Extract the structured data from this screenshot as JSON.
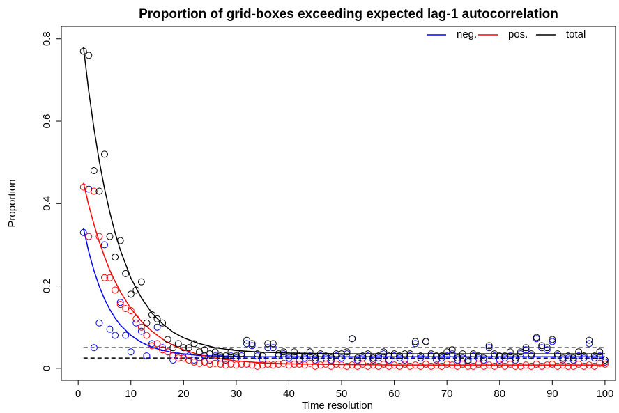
{
  "chart_data": {
    "type": "scatter",
    "title": "Proportion of grid-boxes exceeding expected lag-1 autocorrelation",
    "xlabel": "Time resolution",
    "ylabel": "Proportion",
    "xlim": [
      -3.2,
      102
    ],
    "ylim": [
      -0.029,
      0.83
    ],
    "xticks": [
      0,
      10,
      20,
      30,
      40,
      50,
      60,
      70,
      80,
      90,
      100
    ],
    "yticks": [
      0,
      0.2,
      0.4,
      0.6,
      0.8
    ],
    "legend": "top-right",
    "hlines": [
      0.025,
      0.05
    ],
    "x": [
      1,
      2,
      3,
      4,
      5,
      6,
      7,
      8,
      9,
      10,
      11,
      12,
      13,
      14,
      15,
      16,
      17,
      18,
      19,
      20,
      21,
      22,
      23,
      24,
      25,
      26,
      27,
      28,
      29,
      30,
      31,
      32,
      33,
      34,
      35,
      36,
      37,
      38,
      39,
      40,
      41,
      42,
      43,
      44,
      45,
      46,
      47,
      48,
      49,
      50,
      51,
      52,
      53,
      54,
      55,
      56,
      57,
      58,
      59,
      60,
      61,
      62,
      63,
      64,
      65,
      66,
      67,
      68,
      69,
      70,
      71,
      72,
      73,
      74,
      75,
      76,
      77,
      78,
      79,
      80,
      81,
      82,
      83,
      84,
      85,
      86,
      87,
      88,
      89,
      90,
      91,
      92,
      93,
      94,
      95,
      96,
      97,
      98,
      99,
      100
    ],
    "fit_x": [
      1,
      2,
      3,
      4,
      5,
      6,
      7,
      8,
      10,
      12,
      14,
      16,
      18,
      20,
      23,
      26,
      30,
      35,
      40,
      50,
      60,
      80,
      100
    ],
    "series": [
      {
        "name": "neg.",
        "color": "#0000ff",
        "values": [
          0.33,
          0.435,
          0.05,
          0.11,
          0.3,
          0.095,
          0.08,
          0.16,
          0.08,
          0.04,
          0.11,
          0.09,
          0.03,
          0.06,
          0.1,
          0.05,
          0.04,
          0.02,
          0.03,
          0.025,
          0.03,
          0.02,
          0.025,
          0.03,
          0.02,
          0.03,
          0.025,
          0.02,
          0.03,
          0.025,
          0.03,
          0.06,
          0.055,
          0.03,
          0.02,
          0.05,
          0.05,
          0.03,
          0.035,
          0.025,
          0.03,
          0.02,
          0.025,
          0.03,
          0.02,
          0.03,
          0.025,
          0.02,
          0.03,
          0.025,
          0.035,
          0.072,
          0.02,
          0.025,
          0.03,
          0.02,
          0.025,
          0.035,
          0.02,
          0.03,
          0.025,
          0.02,
          0.03,
          0.06,
          0.025,
          0.065,
          0.03,
          0.02,
          0.025,
          0.03,
          0.035,
          0.02,
          0.025,
          0.015,
          0.03,
          0.025,
          0.02,
          0.05,
          0.03,
          0.02,
          0.025,
          0.03,
          0.02,
          0.035,
          0.045,
          0.03,
          0.072,
          0.05,
          0.045,
          0.065,
          0.03,
          0.02,
          0.025,
          0.02,
          0.03,
          0.025,
          0.06,
          0.025,
          0.03,
          0.015
        ],
        "fit": [
          0.34,
          0.283,
          0.237,
          0.199,
          0.168,
          0.143,
          0.122,
          0.105,
          0.08,
          0.063,
          0.051,
          0.044,
          0.038,
          0.035,
          0.031,
          0.03,
          0.029,
          0.028,
          0.028,
          0.028,
          0.028,
          0.028,
          0.028
        ]
      },
      {
        "name": "pos.",
        "color": "#ff0000",
        "values": [
          0.44,
          0.32,
          0.43,
          0.32,
          0.22,
          0.22,
          0.19,
          0.155,
          0.145,
          0.14,
          0.12,
          0.1,
          0.08,
          0.055,
          0.06,
          0.045,
          0.04,
          0.03,
          0.025,
          0.025,
          0.02,
          0.015,
          0.012,
          0.015,
          0.01,
          0.012,
          0.01,
          0.008,
          0.01,
          0.008,
          0.01,
          0.01,
          0.008,
          0.005,
          0.008,
          0.01,
          0.008,
          0.01,
          0.012,
          0.008,
          0.01,
          0.01,
          0.008,
          0.012,
          0.005,
          0.008,
          0.01,
          0.005,
          0.01,
          0.008,
          0.005,
          0.008,
          0.005,
          0.01,
          0.005,
          0.008,
          0.005,
          0.01,
          0.005,
          0.008,
          0.005,
          0.01,
          0.005,
          0.008,
          0.005,
          0.01,
          0.005,
          0.008,
          0.005,
          0.01,
          0.008,
          0.005,
          0.01,
          0.005,
          0.005,
          0.01,
          0.005,
          0.008,
          0.005,
          0.01,
          0.005,
          0.01,
          0.005,
          0.005,
          0.008,
          0.005,
          0.01,
          0.005,
          0.008,
          0.01,
          0.005,
          0.008,
          0.005,
          0.005,
          0.01,
          0.005,
          0.008,
          0.005,
          0.012,
          0.01
        ],
        "fit": [
          0.45,
          0.396,
          0.349,
          0.307,
          0.271,
          0.238,
          0.211,
          0.186,
          0.145,
          0.114,
          0.09,
          0.071,
          0.056,
          0.045,
          0.033,
          0.025,
          0.018,
          0.013,
          0.011,
          0.009,
          0.008,
          0.008,
          0.008
        ]
      },
      {
        "name": "total",
        "color": "#000000",
        "values": [
          0.77,
          0.76,
          0.48,
          0.43,
          0.52,
          0.32,
          0.27,
          0.31,
          0.23,
          0.18,
          0.19,
          0.21,
          0.11,
          0.13,
          0.12,
          0.11,
          0.07,
          0.05,
          0.06,
          0.05,
          0.05,
          0.06,
          0.04,
          0.045,
          0.035,
          0.04,
          0.03,
          0.03,
          0.04,
          0.03,
          0.035,
          0.068,
          0.06,
          0.035,
          0.03,
          0.06,
          0.06,
          0.035,
          0.04,
          0.03,
          0.04,
          0.03,
          0.03,
          0.04,
          0.025,
          0.035,
          0.03,
          0.025,
          0.035,
          0.035,
          0.04,
          0.072,
          0.025,
          0.03,
          0.035,
          0.025,
          0.03,
          0.04,
          0.03,
          0.035,
          0.03,
          0.035,
          0.035,
          0.065,
          0.03,
          0.065,
          0.035,
          0.03,
          0.03,
          0.04,
          0.045,
          0.025,
          0.035,
          0.02,
          0.035,
          0.03,
          0.025,
          0.055,
          0.035,
          0.03,
          0.03,
          0.04,
          0.025,
          0.04,
          0.05,
          0.035,
          0.075,
          0.055,
          0.05,
          0.07,
          0.035,
          0.025,
          0.03,
          0.025,
          0.04,
          0.03,
          0.068,
          0.03,
          0.04,
          0.02
        ],
        "fit": [
          0.78,
          0.673,
          0.582,
          0.503,
          0.436,
          0.379,
          0.329,
          0.287,
          0.219,
          0.171,
          0.134,
          0.108,
          0.088,
          0.074,
          0.06,
          0.05,
          0.043,
          0.039,
          0.037,
          0.035,
          0.035,
          0.035,
          0.035
        ]
      }
    ]
  }
}
